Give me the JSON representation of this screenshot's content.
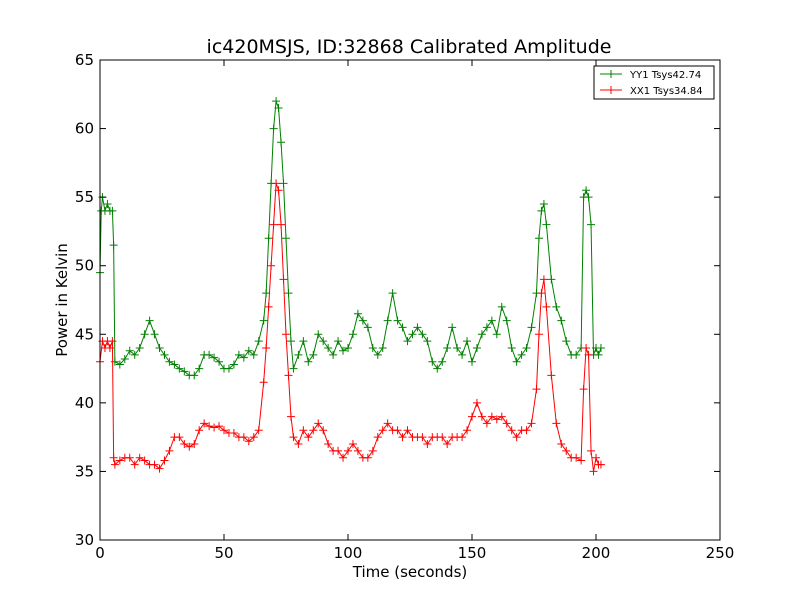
{
  "chart_data": {
    "type": "line",
    "title": "ic420MSJS, ID:32868 Calibrated Amplitude",
    "xlabel": "Time (seconds)",
    "ylabel": "Power in Kelvin",
    "xlim": [
      0,
      250
    ],
    "ylim": [
      30,
      65
    ],
    "xticks": [
      0,
      50,
      100,
      150,
      200,
      250
    ],
    "yticks": [
      30,
      35,
      40,
      45,
      50,
      55,
      60,
      65
    ],
    "grid": false,
    "legend_position": "top-right",
    "marker": "+",
    "series": [
      {
        "name": "YY1 Tsys42.74",
        "color": "#008000",
        "points": [
          [
            0,
            49.5
          ],
          [
            0.5,
            54.0
          ],
          [
            1,
            55.0
          ],
          [
            2,
            54.0
          ],
          [
            3,
            54.5
          ],
          [
            4,
            54.0
          ],
          [
            5,
            54.0
          ],
          [
            5.5,
            51.5
          ],
          [
            6,
            43.0
          ],
          [
            8,
            42.8
          ],
          [
            10,
            43.2
          ],
          [
            12,
            43.8
          ],
          [
            14,
            43.5
          ],
          [
            16,
            44.0
          ],
          [
            18,
            45.0
          ],
          [
            20,
            46.0
          ],
          [
            22,
            45.0
          ],
          [
            24,
            44.0
          ],
          [
            26,
            43.5
          ],
          [
            28,
            43.0
          ],
          [
            30,
            42.8
          ],
          [
            32,
            42.5
          ],
          [
            34,
            42.3
          ],
          [
            36,
            42.0
          ],
          [
            38,
            42.0
          ],
          [
            40,
            42.5
          ],
          [
            42,
            43.5
          ],
          [
            44,
            43.5
          ],
          [
            46,
            43.3
          ],
          [
            48,
            43.0
          ],
          [
            50,
            42.5
          ],
          [
            52,
            42.5
          ],
          [
            54,
            42.8
          ],
          [
            56,
            43.5
          ],
          [
            58,
            43.3
          ],
          [
            60,
            43.8
          ],
          [
            62,
            43.5
          ],
          [
            64,
            44.5
          ],
          [
            66,
            46.0
          ],
          [
            67,
            48.0
          ],
          [
            68,
            52.0
          ],
          [
            69,
            56.0
          ],
          [
            70,
            60.0
          ],
          [
            71,
            62.0
          ],
          [
            72,
            61.5
          ],
          [
            73,
            59.0
          ],
          [
            74,
            56.0
          ],
          [
            75,
            52.0
          ],
          [
            76,
            48.0
          ],
          [
            77,
            44.5
          ],
          [
            78,
            42.5
          ],
          [
            80,
            43.5
          ],
          [
            82,
            44.5
          ],
          [
            84,
            43.0
          ],
          [
            86,
            43.5
          ],
          [
            88,
            45.0
          ],
          [
            90,
            44.5
          ],
          [
            92,
            44.0
          ],
          [
            94,
            43.5
          ],
          [
            96,
            44.5
          ],
          [
            98,
            43.8
          ],
          [
            100,
            44.0
          ],
          [
            102,
            45.0
          ],
          [
            104,
            46.5
          ],
          [
            106,
            46.0
          ],
          [
            108,
            45.5
          ],
          [
            110,
            44.0
          ],
          [
            112,
            43.5
          ],
          [
            114,
            44.0
          ],
          [
            116,
            46.0
          ],
          [
            118,
            48.0
          ],
          [
            120,
            46.0
          ],
          [
            122,
            45.5
          ],
          [
            124,
            44.5
          ],
          [
            126,
            45.0
          ],
          [
            128,
            45.5
          ],
          [
            130,
            45.0
          ],
          [
            132,
            44.5
          ],
          [
            134,
            43.0
          ],
          [
            136,
            42.5
          ],
          [
            138,
            43.0
          ],
          [
            140,
            44.0
          ],
          [
            142,
            45.5
          ],
          [
            144,
            44.0
          ],
          [
            146,
            43.5
          ],
          [
            148,
            44.5
          ],
          [
            150,
            43.0
          ],
          [
            152,
            44.0
          ],
          [
            154,
            45.0
          ],
          [
            156,
            45.5
          ],
          [
            158,
            46.0
          ],
          [
            160,
            45.0
          ],
          [
            162,
            47.0
          ],
          [
            164,
            46.0
          ],
          [
            166,
            44.0
          ],
          [
            168,
            43.0
          ],
          [
            170,
            43.5
          ],
          [
            172,
            44.0
          ],
          [
            174,
            45.5
          ],
          [
            176,
            48.0
          ],
          [
            177,
            52.0
          ],
          [
            178,
            54.0
          ],
          [
            179,
            54.5
          ],
          [
            180,
            53.0
          ],
          [
            182,
            49.0
          ],
          [
            184,
            47.0
          ],
          [
            186,
            46.0
          ],
          [
            188,
            44.5
          ],
          [
            190,
            43.5
          ],
          [
            192,
            43.5
          ],
          [
            194,
            44.0
          ],
          [
            195,
            55.0
          ],
          [
            196,
            55.5
          ],
          [
            197,
            55.0
          ],
          [
            198,
            53.0
          ],
          [
            199,
            43.5
          ],
          [
            200,
            44.0
          ],
          [
            201,
            43.5
          ],
          [
            202,
            44.0
          ]
        ]
      },
      {
        "name": "XX1 Tsys34.84",
        "color": "#ff0000",
        "points": [
          [
            0,
            43.0
          ],
          [
            1,
            44.5
          ],
          [
            2,
            44.0
          ],
          [
            3,
            44.5
          ],
          [
            4,
            44.0
          ],
          [
            5,
            44.5
          ],
          [
            5.5,
            36.0
          ],
          [
            6,
            35.5
          ],
          [
            8,
            35.8
          ],
          [
            10,
            36.0
          ],
          [
            12,
            36.0
          ],
          [
            14,
            35.5
          ],
          [
            16,
            36.0
          ],
          [
            18,
            35.8
          ],
          [
            20,
            35.5
          ],
          [
            22,
            35.5
          ],
          [
            24,
            35.2
          ],
          [
            26,
            35.8
          ],
          [
            28,
            36.5
          ],
          [
            30,
            37.5
          ],
          [
            32,
            37.5
          ],
          [
            34,
            37.0
          ],
          [
            36,
            36.8
          ],
          [
            38,
            37.0
          ],
          [
            40,
            38.0
          ],
          [
            42,
            38.5
          ],
          [
            44,
            38.3
          ],
          [
            46,
            38.2
          ],
          [
            48,
            38.3
          ],
          [
            50,
            38.0
          ],
          [
            52,
            37.8
          ],
          [
            54,
            37.8
          ],
          [
            56,
            37.5
          ],
          [
            58,
            37.5
          ],
          [
            60,
            37.2
          ],
          [
            62,
            37.5
          ],
          [
            64,
            38.0
          ],
          [
            66,
            41.5
          ],
          [
            67,
            44.0
          ],
          [
            68,
            47.0
          ],
          [
            69,
            50.0
          ],
          [
            70,
            53.0
          ],
          [
            71,
            56.0
          ],
          [
            72,
            55.5
          ],
          [
            73,
            53.0
          ],
          [
            74,
            49.0
          ],
          [
            75,
            45.0
          ],
          [
            76,
            42.0
          ],
          [
            77,
            39.0
          ],
          [
            78,
            37.5
          ],
          [
            80,
            37.0
          ],
          [
            82,
            38.0
          ],
          [
            84,
            37.5
          ],
          [
            86,
            38.0
          ],
          [
            88,
            38.5
          ],
          [
            90,
            38.0
          ],
          [
            92,
            37.0
          ],
          [
            94,
            36.5
          ],
          [
            96,
            36.5
          ],
          [
            98,
            36.0
          ],
          [
            100,
            36.5
          ],
          [
            102,
            37.0
          ],
          [
            104,
            36.5
          ],
          [
            106,
            36.0
          ],
          [
            108,
            36.0
          ],
          [
            110,
            36.5
          ],
          [
            112,
            37.5
          ],
          [
            114,
            38.0
          ],
          [
            116,
            38.5
          ],
          [
            118,
            38.0
          ],
          [
            120,
            38.0
          ],
          [
            122,
            37.5
          ],
          [
            124,
            38.0
          ],
          [
            126,
            37.5
          ],
          [
            128,
            37.5
          ],
          [
            130,
            37.5
          ],
          [
            132,
            37.0
          ],
          [
            134,
            37.5
          ],
          [
            136,
            37.5
          ],
          [
            138,
            37.5
          ],
          [
            140,
            37.0
          ],
          [
            142,
            37.5
          ],
          [
            144,
            37.5
          ],
          [
            146,
            37.5
          ],
          [
            148,
            38.0
          ],
          [
            150,
            39.0
          ],
          [
            152,
            40.0
          ],
          [
            154,
            39.0
          ],
          [
            156,
            38.5
          ],
          [
            158,
            39.0
          ],
          [
            160,
            38.8
          ],
          [
            162,
            39.0
          ],
          [
            164,
            38.5
          ],
          [
            166,
            38.0
          ],
          [
            168,
            37.5
          ],
          [
            170,
            38.0
          ],
          [
            172,
            38.0
          ],
          [
            174,
            38.5
          ],
          [
            176,
            41.0
          ],
          [
            177,
            45.0
          ],
          [
            178,
            48.0
          ],
          [
            179,
            49.0
          ],
          [
            180,
            47.0
          ],
          [
            182,
            42.0
          ],
          [
            184,
            38.5
          ],
          [
            186,
            37.0
          ],
          [
            188,
            36.5
          ],
          [
            190,
            36.0
          ],
          [
            192,
            36.0
          ],
          [
            194,
            35.8
          ],
          [
            195,
            41.0
          ],
          [
            196,
            44.0
          ],
          [
            197,
            43.5
          ],
          [
            198,
            36.5
          ],
          [
            199,
            35.0
          ],
          [
            200,
            36.0
          ],
          [
            201,
            35.5
          ],
          [
            202,
            35.5
          ]
        ]
      }
    ]
  }
}
